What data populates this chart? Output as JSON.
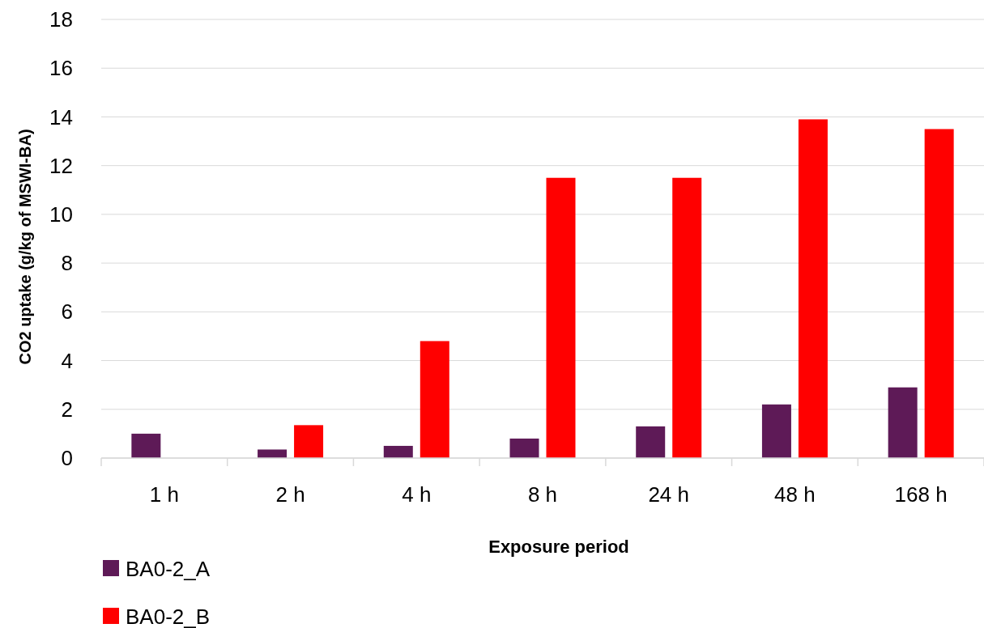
{
  "chart_data": {
    "type": "bar",
    "xlabel": "Exposure period",
    "ylabel": "CO2 uptake (g/kg of MSWI-BA)",
    "categories": [
      "1 h",
      "2 h",
      "4 h",
      "8 h",
      "24 h",
      "48 h",
      "168 h"
    ],
    "series": [
      {
        "name": "BA0-2_A",
        "color": "#5e1a57",
        "values": [
          1.0,
          0.35,
          0.5,
          0.8,
          1.3,
          2.2,
          2.9
        ]
      },
      {
        "name": "BA0-2_B",
        "color": "#ff0000",
        "values": [
          null,
          1.35,
          4.8,
          11.5,
          11.5,
          13.9,
          13.5
        ]
      }
    ],
    "ylim": [
      0,
      18
    ],
    "yticks": [
      0,
      2,
      4,
      6,
      8,
      10,
      12,
      14,
      16,
      18
    ],
    "grid": "y",
    "legend": "bottom left"
  }
}
